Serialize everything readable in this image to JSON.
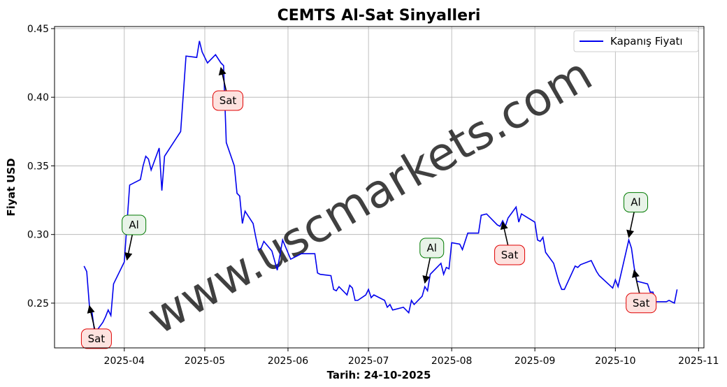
{
  "chart_data": {
    "type": "line",
    "title": "CEMTS Al-Sat Sinyalleri",
    "xlabel": "Tarih: 24-10-2025",
    "ylabel": "Fiyat USD",
    "watermark": "www.uscmarkets.com",
    "legend": "upper right",
    "grid": true,
    "xlim": [
      "2025-03-06",
      "2025-11-03"
    ],
    "ylim": [
      0.2174,
      0.4515
    ],
    "xticks": [
      {
        "value": "2025-04-01",
        "label": "2025-04"
      },
      {
        "value": "2025-05-01",
        "label": "2025-05"
      },
      {
        "value": "2025-06-01",
        "label": "2025-06"
      },
      {
        "value": "2025-07-01",
        "label": "2025-07"
      },
      {
        "value": "2025-08-01",
        "label": "2025-08"
      },
      {
        "value": "2025-09-01",
        "label": "2025-09"
      },
      {
        "value": "2025-10-01",
        "label": "2025-10"
      },
      {
        "value": "2025-11-01",
        "label": "2025-11"
      }
    ],
    "yticks": [
      {
        "value": 0.25,
        "label": "0.25"
      },
      {
        "value": 0.3,
        "label": "0.30"
      },
      {
        "value": 0.35,
        "label": "0.35"
      },
      {
        "value": 0.4,
        "label": "0.40"
      },
      {
        "value": 0.45,
        "label": "0.45"
      }
    ],
    "x": [
      "2025-03-17",
      "2025-03-18",
      "2025-03-19",
      "2025-03-20",
      "2025-03-21",
      "2025-03-24",
      "2025-03-25",
      "2025-03-26",
      "2025-03-27",
      "2025-03-28",
      "2025-04-01",
      "2025-04-03",
      "2025-04-07",
      "2025-04-08",
      "2025-04-09",
      "2025-04-10",
      "2025-04-11",
      "2025-04-14",
      "2025-04-15",
      "2025-04-16",
      "2025-04-22",
      "2025-04-24",
      "2025-04-28",
      "2025-04-29",
      "2025-04-30",
      "2025-05-02",
      "2025-05-05",
      "2025-05-07",
      "2025-05-08",
      "2025-05-09",
      "2025-05-12",
      "2025-05-13",
      "2025-05-14",
      "2025-05-15",
      "2025-05-16",
      "2025-05-19",
      "2025-05-20",
      "2025-05-21",
      "2025-05-22",
      "2025-05-23",
      "2025-05-26",
      "2025-05-28",
      "2025-05-30",
      "2025-06-02",
      "2025-06-05",
      "2025-06-06",
      "2025-06-11",
      "2025-06-12",
      "2025-06-13",
      "2025-06-17",
      "2025-06-18",
      "2025-06-19",
      "2025-06-20",
      "2025-06-23",
      "2025-06-24",
      "2025-06-25",
      "2025-06-26",
      "2025-06-27",
      "2025-06-30",
      "2025-07-01",
      "2025-07-02",
      "2025-07-03",
      "2025-07-07",
      "2025-07-08",
      "2025-07-09",
      "2025-07-10",
      "2025-07-14",
      "2025-07-16",
      "2025-07-17",
      "2025-07-18",
      "2025-07-21",
      "2025-07-22",
      "2025-07-23",
      "2025-07-24",
      "2025-07-28",
      "2025-07-29",
      "2025-07-30",
      "2025-07-31",
      "2025-08-01",
      "2025-08-04",
      "2025-08-05",
      "2025-08-07",
      "2025-08-11",
      "2025-08-12",
      "2025-08-14",
      "2025-08-18",
      "2025-08-19",
      "2025-08-20",
      "2025-08-21",
      "2025-08-22",
      "2025-08-25",
      "2025-08-26",
      "2025-08-27",
      "2025-09-01",
      "2025-09-02",
      "2025-09-03",
      "2025-09-04",
      "2025-09-05",
      "2025-09-08",
      "2025-09-10",
      "2025-09-11",
      "2025-09-12",
      "2025-09-16",
      "2025-09-17",
      "2025-09-18",
      "2025-09-22",
      "2025-09-24",
      "2025-09-25",
      "2025-09-30",
      "2025-10-01",
      "2025-10-02",
      "2025-10-06",
      "2025-10-07",
      "2025-10-08",
      "2025-10-09",
      "2025-10-13",
      "2025-10-14",
      "2025-10-15",
      "2025-10-16",
      "2025-10-20",
      "2025-10-21",
      "2025-10-23",
      "2025-10-24"
    ],
    "series": [
      {
        "name": "Kapanış Fiyatı",
        "color": "#0000ee",
        "values": [
          0.277,
          0.273,
          0.248,
          0.243,
          0.228,
          0.236,
          0.24,
          0.245,
          0.241,
          0.264,
          0.28,
          0.336,
          0.34,
          0.35,
          0.357,
          0.355,
          0.347,
          0.363,
          0.332,
          0.357,
          0.375,
          0.43,
          0.429,
          0.441,
          0.433,
          0.425,
          0.431,
          0.425,
          0.423,
          0.367,
          0.35,
          0.33,
          0.328,
          0.308,
          0.317,
          0.308,
          0.298,
          0.289,
          0.29,
          0.295,
          0.288,
          0.274,
          0.296,
          0.282,
          0.285,
          0.286,
          0.286,
          0.272,
          0.271,
          0.27,
          0.26,
          0.259,
          0.262,
          0.256,
          0.263,
          0.261,
          0.252,
          0.252,
          0.256,
          0.26,
          0.254,
          0.256,
          0.252,
          0.247,
          0.249,
          0.245,
          0.247,
          0.243,
          0.252,
          0.249,
          0.255,
          0.262,
          0.259,
          0.271,
          0.279,
          0.271,
          0.276,
          0.275,
          0.294,
          0.293,
          0.289,
          0.301,
          0.301,
          0.314,
          0.315,
          0.307,
          0.306,
          0.31,
          0.306,
          0.312,
          0.32,
          0.309,
          0.315,
          0.309,
          0.296,
          0.295,
          0.298,
          0.287,
          0.279,
          0.265,
          0.26,
          0.26,
          0.277,
          0.276,
          0.278,
          0.281,
          0.273,
          0.27,
          0.261,
          0.267,
          0.262,
          0.296,
          0.29,
          0.276,
          0.266,
          0.264,
          0.258,
          0.258,
          0.251,
          0.251,
          0.252,
          0.25,
          0.26
        ]
      }
    ],
    "annotations": [
      {
        "label": "Sat",
        "x": "2025-03-19",
        "y": 0.248,
        "color": "red"
      },
      {
        "label": "Al",
        "x": "2025-04-02",
        "y": 0.2815,
        "color": "green"
      },
      {
        "label": "Sat",
        "x": "2025-05-07",
        "y": 0.4215,
        "color": "red"
      },
      {
        "label": "Al",
        "x": "2025-07-22",
        "y": 0.2647,
        "color": "green"
      },
      {
        "label": "Sat",
        "x": "2025-08-20",
        "y": 0.309,
        "color": "red"
      },
      {
        "label": "Al",
        "x": "2025-10-06",
        "y": 0.298,
        "color": "green"
      },
      {
        "label": "Sat",
        "x": "2025-10-08",
        "y": 0.274,
        "color": "red"
      }
    ]
  }
}
